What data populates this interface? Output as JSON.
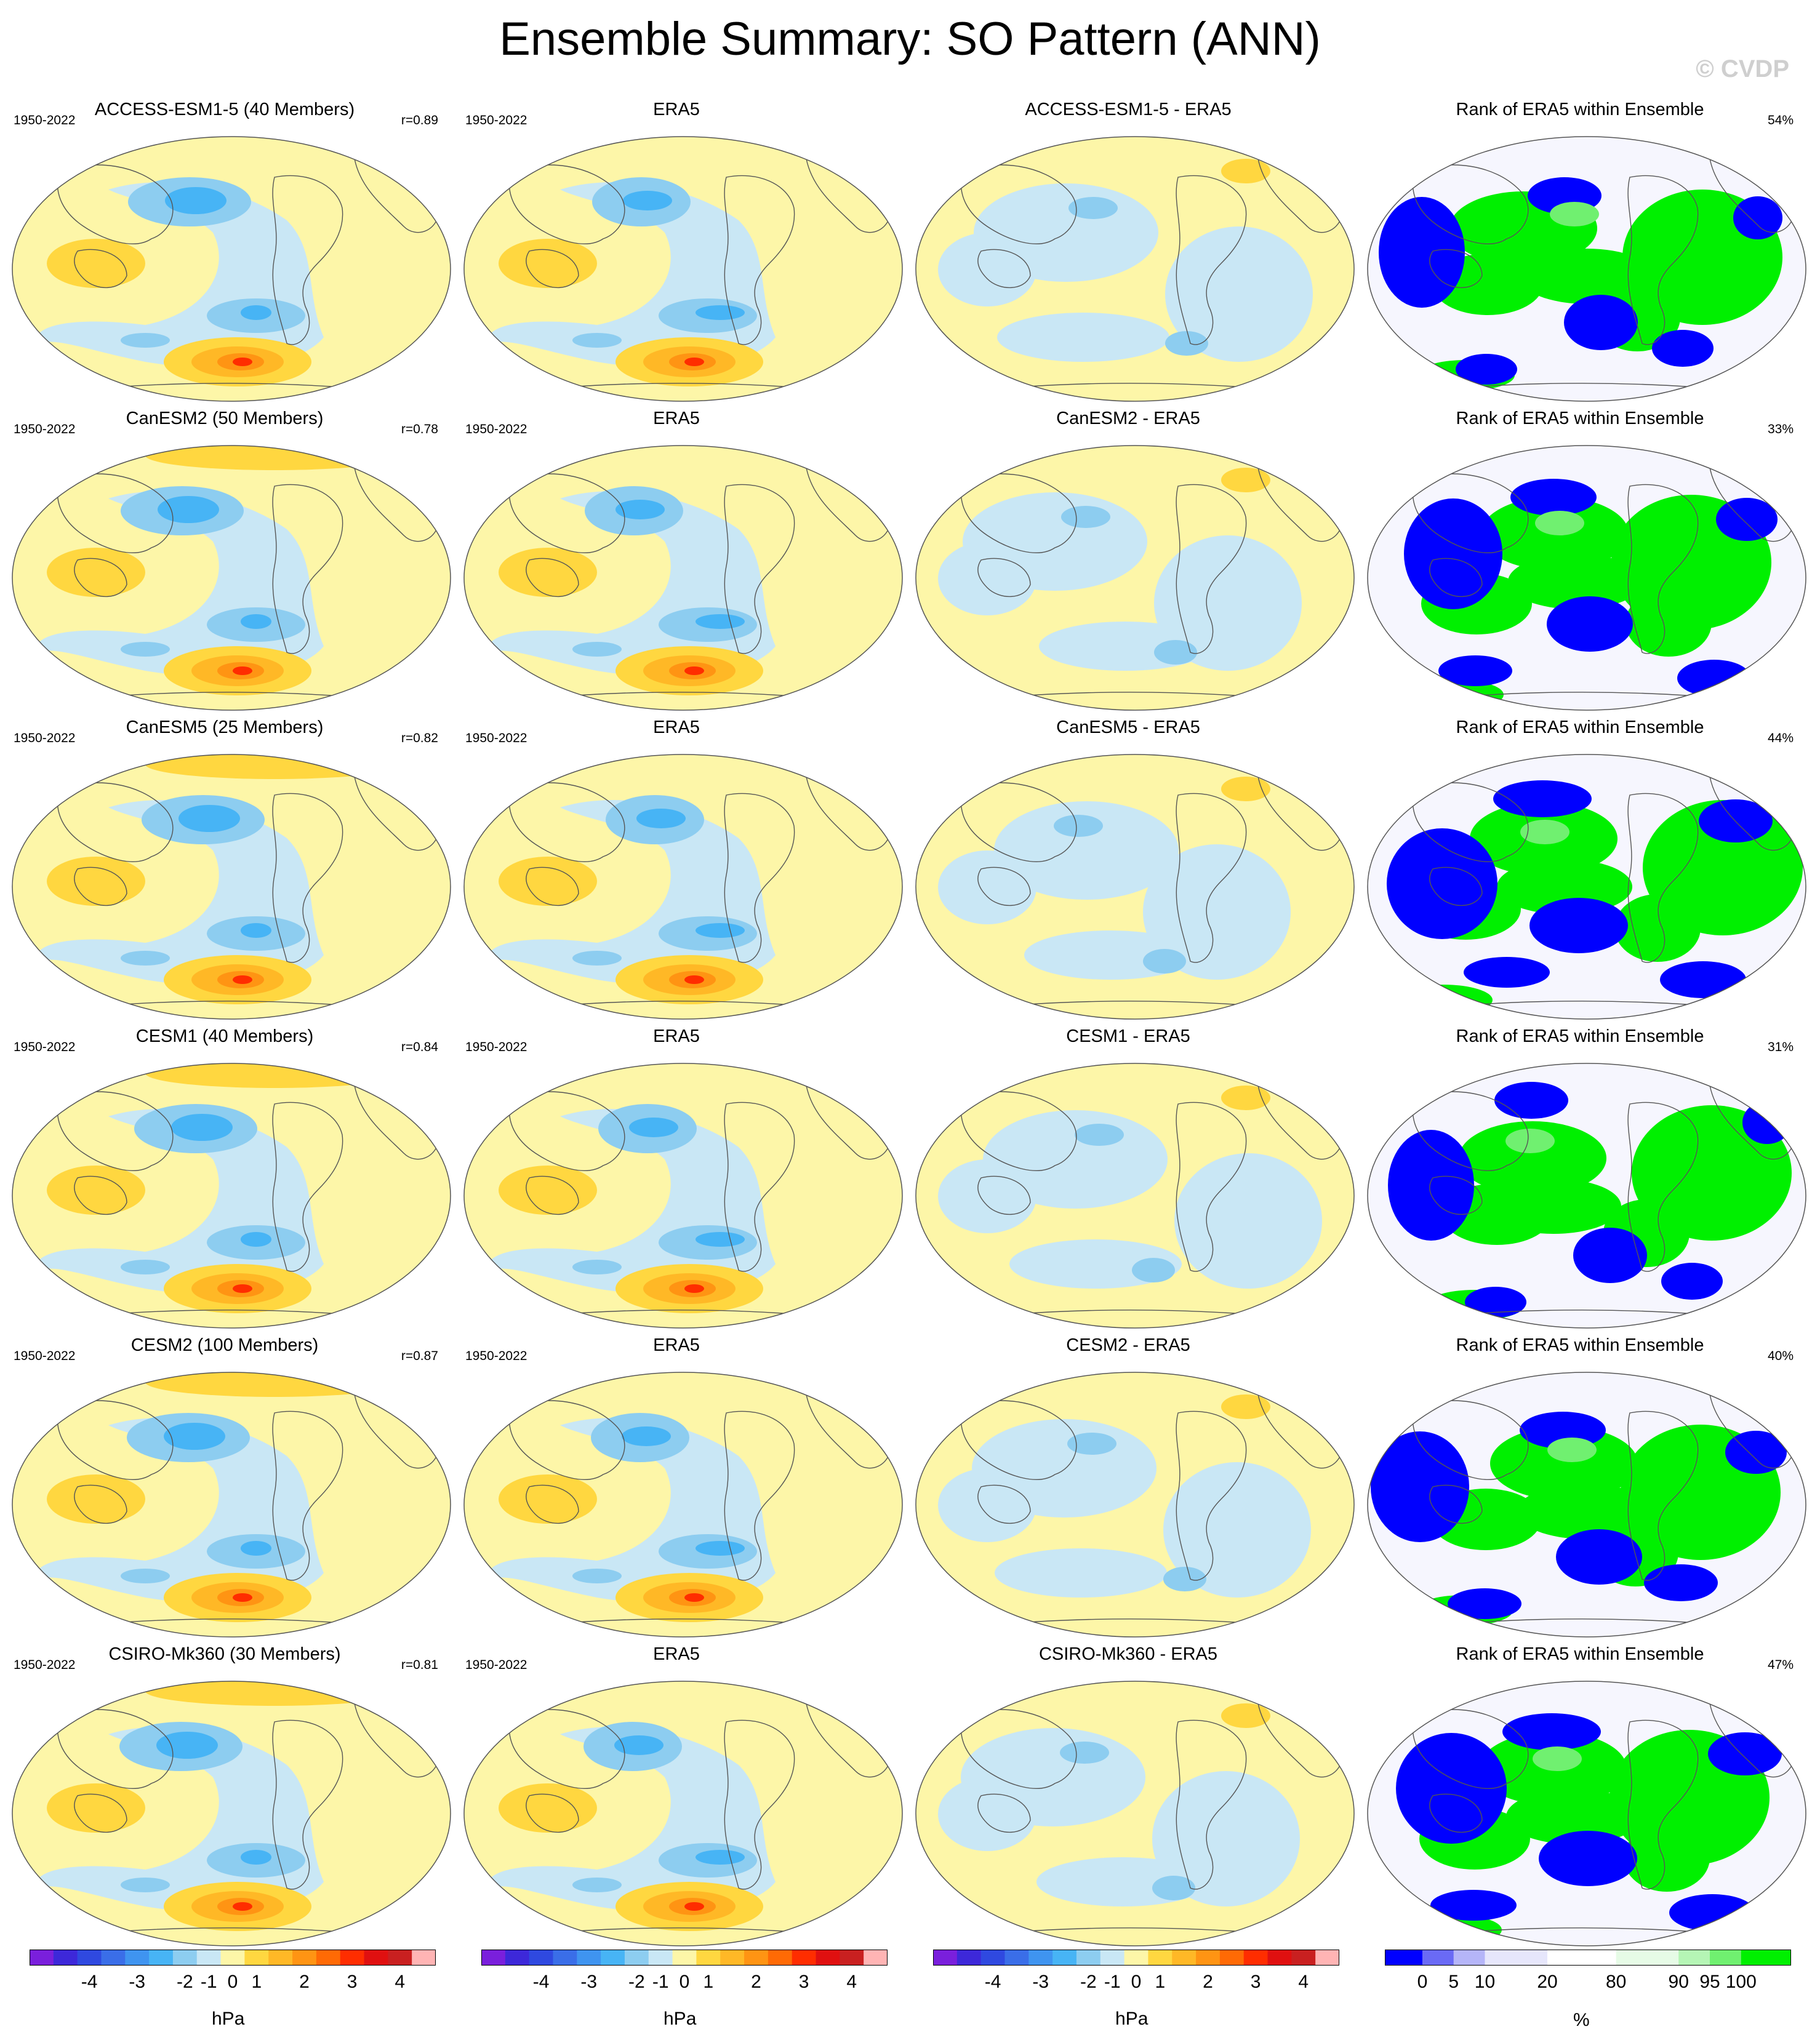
{
  "title": "Ensemble Summary: SO Pattern (ANN)",
  "credit": "© CVDP",
  "colors": {
    "diverging": [
      "#7a1fdc",
      "#3d28d9",
      "#2f49e0",
      "#3a6ee8",
      "#3f94f0",
      "#47b4f5",
      "#8dcdf0",
      "#c9e7f5",
      "#fdf6a8",
      "#ffd740",
      "#ffb826",
      "#ff9413",
      "#ff6a05",
      "#ff2d00",
      "#e01010",
      "#c92020",
      "#ffb4b4"
    ],
    "rank": [
      "#0000ff",
      "#6a6af5",
      "#b5b5f8",
      "#e6e6fb",
      "#ffffff",
      "#e6fbe6",
      "#b5f5b5",
      "#70f070",
      "#00f000"
    ],
    "coast": "#555555",
    "ocean_bg": "#c9e7f5"
  },
  "rows": [
    {
      "model": {
        "title": "ACCESS-ESM1-5 (40 Members)",
        "years": "1950-2022",
        "r": "r=0.89"
      },
      "obs": {
        "title": "ERA5",
        "years": "1950-2022"
      },
      "diff": {
        "title": "ACCESS-ESM1-5 - ERA5"
      },
      "rank": {
        "title": "Rank of ERA5 within Ensemble",
        "pct": "54%"
      }
    },
    {
      "model": {
        "title": "CanESM2 (50 Members)",
        "years": "1950-2022",
        "r": "r=0.78"
      },
      "obs": {
        "title": "ERA5",
        "years": "1950-2022"
      },
      "diff": {
        "title": "CanESM2 - ERA5"
      },
      "rank": {
        "title": "Rank of ERA5 within Ensemble",
        "pct": "33%"
      }
    },
    {
      "model": {
        "title": "CanESM5 (25 Members)",
        "years": "1950-2022",
        "r": "r=0.82"
      },
      "obs": {
        "title": "ERA5",
        "years": "1950-2022"
      },
      "diff": {
        "title": "CanESM5 - ERA5"
      },
      "rank": {
        "title": "Rank of ERA5 within Ensemble",
        "pct": "44%"
      }
    },
    {
      "model": {
        "title": "CESM1 (40 Members)",
        "years": "1950-2022",
        "r": "r=0.84"
      },
      "obs": {
        "title": "ERA5",
        "years": "1950-2022"
      },
      "diff": {
        "title": "CESM1 - ERA5"
      },
      "rank": {
        "title": "Rank of ERA5 within Ensemble",
        "pct": "31%"
      }
    },
    {
      "model": {
        "title": "CESM2 (100 Members)",
        "years": "1950-2022",
        "r": "r=0.87"
      },
      "obs": {
        "title": "ERA5",
        "years": "1950-2022"
      },
      "diff": {
        "title": "CESM2 - ERA5"
      },
      "rank": {
        "title": "Rank of ERA5 within Ensemble",
        "pct": "40%"
      }
    },
    {
      "model": {
        "title": "CSIRO-Mk360 (30 Members)",
        "years": "1950-2022",
        "r": "r=0.81"
      },
      "obs": {
        "title": "ERA5",
        "years": "1950-2022"
      },
      "diff": {
        "title": "CSIRO-Mk360 - ERA5"
      },
      "rank": {
        "title": "Rank of ERA5 within Ensemble",
        "pct": "47%"
      }
    }
  ],
  "colorbar_diverging": {
    "ticks": [
      "-4",
      "-3",
      "-2",
      "-1",
      "0",
      "1",
      "2",
      "3",
      "4"
    ],
    "units": "hPa"
  },
  "colorbar_rank": {
    "ticks": [
      "0",
      "5",
      "10",
      "20",
      "80",
      "90",
      "95",
      "100"
    ],
    "units": "%"
  }
}
